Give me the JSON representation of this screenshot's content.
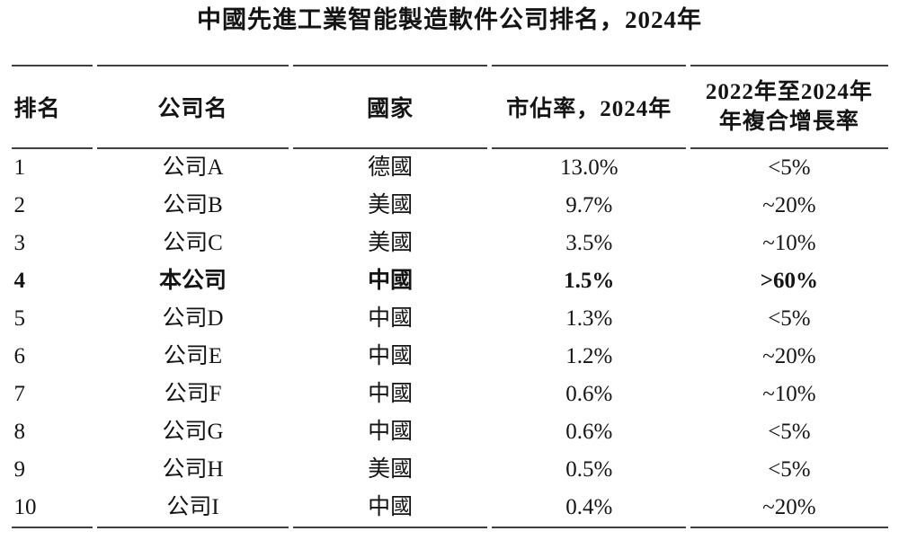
{
  "title": "中國先進工業智能製造軟件公司排名，2024年",
  "colors": {
    "background": "#ffffff",
    "text": "#141414",
    "rule": "#3f3f3f"
  },
  "table": {
    "headers": {
      "rank": "排名",
      "company": "公司名",
      "country": "國家",
      "share": "市佔率，2024年",
      "cagr_line1": "2022年至2024年",
      "cagr_line2": "年複合增長率"
    },
    "rows": [
      {
        "rank": "1",
        "company": "公司A",
        "country": "德國",
        "share": "13.0%",
        "cagr": "<5%",
        "emphasized": false
      },
      {
        "rank": "2",
        "company": "公司B",
        "country": "美國",
        "share": "9.7%",
        "cagr": "~20%",
        "emphasized": false
      },
      {
        "rank": "3",
        "company": "公司C",
        "country": "美國",
        "share": "3.5%",
        "cagr": "~10%",
        "emphasized": false
      },
      {
        "rank": "4",
        "company": "本公司",
        "country": "中國",
        "share": "1.5%",
        "cagr": ">60%",
        "emphasized": true
      },
      {
        "rank": "5",
        "company": "公司D",
        "country": "中國",
        "share": "1.3%",
        "cagr": "<5%",
        "emphasized": false
      },
      {
        "rank": "6",
        "company": "公司E",
        "country": "中國",
        "share": "1.2%",
        "cagr": "~20%",
        "emphasized": false
      },
      {
        "rank": "7",
        "company": "公司F",
        "country": "中國",
        "share": "0.6%",
        "cagr": "~10%",
        "emphasized": false
      },
      {
        "rank": "8",
        "company": "公司G",
        "country": "中國",
        "share": "0.6%",
        "cagr": "<5%",
        "emphasized": false
      },
      {
        "rank": "9",
        "company": "公司H",
        "country": "美國",
        "share": "0.5%",
        "cagr": "<5%",
        "emphasized": false
      },
      {
        "rank": "10",
        "company": "公司I",
        "country": "中國",
        "share": "0.4%",
        "cagr": "~20%",
        "emphasized": false
      }
    ]
  }
}
